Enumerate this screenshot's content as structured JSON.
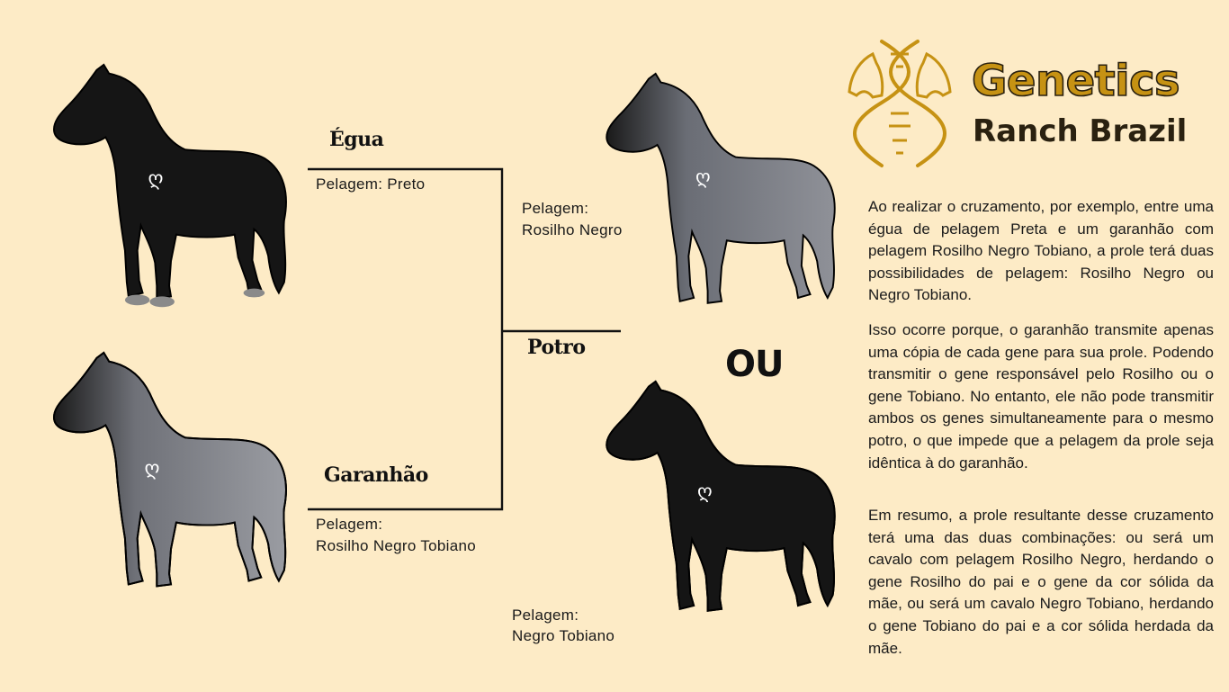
{
  "brand": {
    "title": "Genetics",
    "subtitle": "Ranch Brazil",
    "logo_icon": "dna-horse-heads-logo-icon",
    "colors": {
      "gold": "#c69213",
      "dark": "#2a2110"
    }
  },
  "parents": {
    "mare": {
      "title": "Égua",
      "coat_label": "Pelagem: Preto"
    },
    "stallion": {
      "title": "Garanhão",
      "coat_label": "Pelagem:",
      "coat_value": "Rosilho Negro Tobiano"
    }
  },
  "offspring": {
    "title": "Potro",
    "separator": "OU",
    "option1": {
      "coat_label": "Pelagem:",
      "coat_value": "Rosilho Negro"
    },
    "option2": {
      "coat_label": "Pelagem:",
      "coat_value": "Negro Tobiano"
    }
  },
  "explanation": {
    "p1": "Ao realizar o cruzamento, por exemplo, entre uma égua de pelagem Preta e um garanhão com pelagem Rosilho Negro Tobiano, a prole terá duas possibilidades de pelagem: Rosilho Negro ou Negro Tobiano.",
    "p2": "Isso ocorre porque, o garanhão transmite apenas uma cópia de cada gene para sua prole. Podendo transmitir o gene responsável pelo Rosilho ou o gene Tobiano. No entanto, ele não pode transmitir ambos os genes simultaneamente para o mesmo potro, o que impede que a pelagem da prole seja idêntica à do garanhão.",
    "p3": "Em resumo, a prole resultante desse cruzamento terá uma das duas combinações: ou será um cavalo com pelagem Rosilho Negro, herdando o gene Rosilho do pai e o gene da cor sólida da mãe, ou será um cavalo Negro Tobiano, herdando o gene Tobiano do pai e a cor sólida herdada da mãe."
  },
  "colors": {
    "background": "#fdebc6",
    "black_coat": "#151515",
    "roan_coat": "#7d7f86",
    "white_patch": "#f2f2f2"
  }
}
